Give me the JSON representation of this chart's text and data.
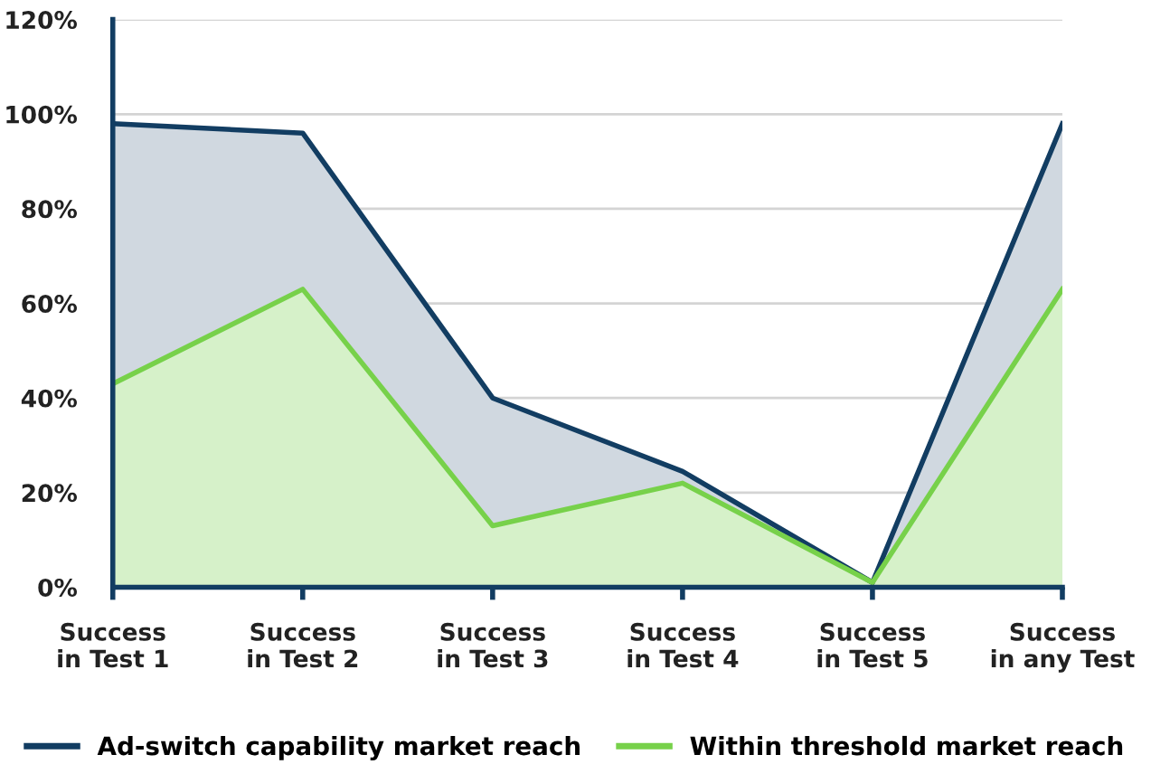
{
  "chart_data": {
    "type": "area",
    "categories": [
      "Success\nin Test 1",
      "Success\nin Test 2",
      "Success\nin Test 3",
      "Success\nin Test 4",
      "Success\nin Test 5",
      "Success\nin any Test"
    ],
    "series": [
      {
        "name": "Ad-switch capability market reach",
        "color": "#123d62",
        "values": [
          98,
          96,
          40,
          24.5,
          1,
          98
        ]
      },
      {
        "name": "Within threshold market reach",
        "color": "#77d14a",
        "values": [
          43,
          63,
          13,
          22,
          1,
          63
        ]
      }
    ],
    "ylim": [
      0,
      120
    ],
    "yticks": [
      {
        "value": 0,
        "label": "0%"
      },
      {
        "value": 20,
        "label": "20%"
      },
      {
        "value": 40,
        "label": "40%"
      },
      {
        "value": 60,
        "label": "60%"
      },
      {
        "value": 80,
        "label": "80%"
      },
      {
        "value": 100,
        "label": "100%"
      },
      {
        "value": 120,
        "label": "120%"
      }
    ],
    "grid": "y",
    "legend": "bottom"
  }
}
